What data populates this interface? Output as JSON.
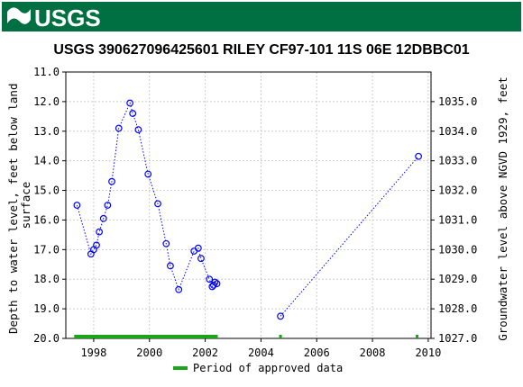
{
  "header": {
    "logo_text": "USGS",
    "colors": {
      "banner": "#006f41",
      "logo_text": "#ffffff"
    }
  },
  "chart_data": {
    "type": "scatter",
    "title": "USGS 390627096425601 RILEY CF97-101  11S 06E 12DBBC01",
    "ylabel": "Depth to water level, feet below land surface",
    "ylabel_right": "Groundwater level above NGVD 1929, feet",
    "xlim": [
      1997,
      2010.1
    ],
    "ylim": [
      11.0,
      20.0
    ],
    "y_inverted": true,
    "y_right_lim": [
      1036.0,
      1027.0
    ],
    "x_ticks": [
      1998,
      2000,
      2002,
      2004,
      2006,
      2008,
      2010
    ],
    "y_ticks": [
      "11.0",
      "12.0",
      "13.0",
      "14.0",
      "15.0",
      "16.0",
      "17.0",
      "18.0",
      "19.0",
      "20.0"
    ],
    "y_right_ticks": [
      "1035.0",
      "1034.0",
      "1033.0",
      "1032.0",
      "1031.0",
      "1030.0",
      "1029.0",
      "1028.0",
      "1027.0"
    ],
    "series": [
      {
        "x": [
          1997.4,
          1997.9,
          1998.0,
          1998.1,
          1998.2,
          1998.35,
          1998.5,
          1998.65,
          1998.9,
          1999.3,
          1999.4,
          1999.6,
          1999.95,
          2000.3,
          2000.6,
          2000.75,
          2001.05,
          2001.6,
          2001.75,
          2001.85,
          2002.15,
          2002.25,
          2002.3,
          2002.35,
          2002.42
        ],
        "y": [
          15.5,
          17.15,
          17.0,
          16.85,
          16.4,
          15.95,
          15.5,
          14.7,
          12.9,
          12.05,
          12.4,
          12.95,
          14.45,
          15.45,
          16.8,
          17.55,
          18.35,
          17.05,
          16.95,
          17.3,
          18.0,
          18.25,
          18.2,
          18.1,
          18.15
        ]
      },
      {
        "x": [
          2004.7,
          2009.65
        ],
        "y": [
          19.25,
          13.85
        ]
      }
    ],
    "approved_periods": [
      [
        1997.3,
        2002.45
      ],
      [
        2004.65,
        2004.75
      ],
      [
        2009.55,
        2009.65
      ]
    ],
    "legend": {
      "label": "Period of approved data",
      "placement": "bottom-center"
    },
    "colors": {
      "points": "#0000ff",
      "approved": "#1ba51b",
      "grid": "#cccccc",
      "axis": "#000000"
    },
    "grid": true
  }
}
